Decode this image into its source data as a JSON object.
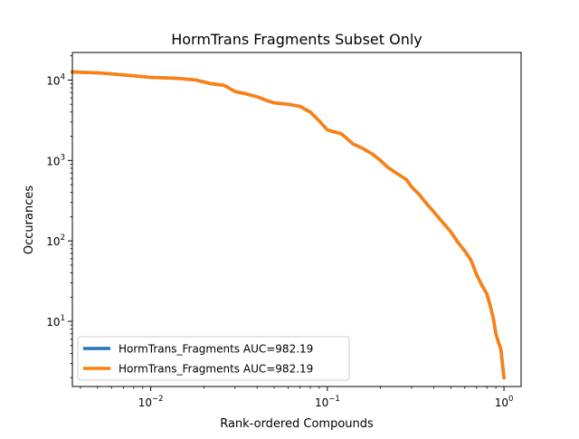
{
  "chart_data": {
    "type": "line",
    "title": "HormTrans Fragments Subset Only",
    "xlabel": "Rank-ordered Compounds",
    "ylabel": "Occurances",
    "xscale": "log",
    "yscale": "log",
    "xlim": [
      0.0036,
      1.25
    ],
    "ylim": [
      1.55,
      22000
    ],
    "grid": false,
    "legend_position": "lower-left",
    "x_ticks": [
      {
        "value": 0.01,
        "base": "10",
        "exp": "−2"
      },
      {
        "value": 0.1,
        "base": "10",
        "exp": "−1"
      },
      {
        "value": 1,
        "base": "10",
        "exp": "0"
      }
    ],
    "y_ticks": [
      {
        "value": 10,
        "base": "10",
        "exp": "1"
      },
      {
        "value": 100,
        "base": "10",
        "exp": "2"
      },
      {
        "value": 1000,
        "base": "10",
        "exp": "3"
      },
      {
        "value": 10000,
        "base": "10",
        "exp": "4"
      }
    ],
    "series": [
      {
        "name": "HormTrans_Fragments AUC=982.19",
        "color": "#1f77b4",
        "x": [
          0.0036,
          0.005,
          0.007,
          0.01,
          0.014,
          0.018,
          0.022,
          0.026,
          0.03,
          0.035,
          0.04,
          0.045,
          0.05,
          0.06,
          0.07,
          0.08,
          0.09,
          0.1,
          0.12,
          0.14,
          0.16,
          0.18,
          0.2,
          0.22,
          0.25,
          0.28,
          0.3,
          0.33,
          0.36,
          0.4,
          0.45,
          0.5,
          0.55,
          0.6,
          0.65,
          0.7,
          0.75,
          0.8,
          0.84,
          0.87,
          0.9,
          0.93,
          0.96,
          0.98,
          1.0
        ],
        "y": [
          12600,
          12300,
          11600,
          10800,
          10500,
          10000,
          9000,
          8600,
          7200,
          6700,
          6200,
          5600,
          5200,
          5000,
          4700,
          4000,
          3100,
          2400,
          2150,
          1600,
          1400,
          1200,
          1000,
          820,
          680,
          580,
          470,
          380,
          300,
          230,
          170,
          130,
          95,
          75,
          58,
          38,
          28,
          22,
          15,
          11,
          7,
          5.5,
          4.5,
          3,
          2
        ]
      },
      {
        "name": "HormTrans_Fragments AUC=982.19",
        "color": "#ff7f0e",
        "x": [
          0.0036,
          0.005,
          0.007,
          0.01,
          0.014,
          0.018,
          0.022,
          0.026,
          0.03,
          0.035,
          0.04,
          0.045,
          0.05,
          0.06,
          0.07,
          0.08,
          0.09,
          0.1,
          0.12,
          0.14,
          0.16,
          0.18,
          0.2,
          0.22,
          0.25,
          0.28,
          0.3,
          0.33,
          0.36,
          0.4,
          0.45,
          0.5,
          0.55,
          0.6,
          0.65,
          0.7,
          0.75,
          0.8,
          0.84,
          0.87,
          0.9,
          0.93,
          0.96,
          0.98,
          1.0
        ],
        "y": [
          12600,
          12300,
          11600,
          10800,
          10500,
          10000,
          9000,
          8600,
          7200,
          6700,
          6200,
          5600,
          5200,
          5000,
          4700,
          4000,
          3100,
          2400,
          2150,
          1600,
          1400,
          1200,
          1000,
          820,
          680,
          580,
          470,
          380,
          300,
          230,
          170,
          130,
          95,
          75,
          58,
          38,
          28,
          22,
          15,
          11,
          7,
          5.5,
          4.5,
          3,
          2
        ]
      }
    ]
  }
}
